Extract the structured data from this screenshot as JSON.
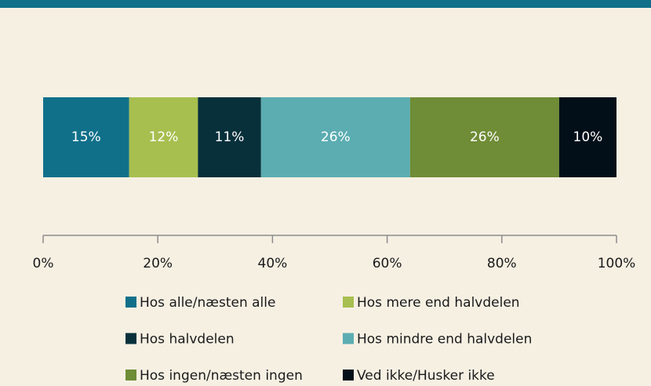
{
  "chart_data": {
    "type": "bar",
    "orientation": "horizontal",
    "stacked": true,
    "categories": [
      null
    ],
    "series": [
      {
        "name": "Hos alle/næsten alle",
        "color": "#10708a",
        "values": [
          15
        ],
        "value_labels": [
          "15%"
        ]
      },
      {
        "name": "Hos mere end halvdelen",
        "color": "#a7bf4f",
        "values": [
          12
        ],
        "value_labels": [
          "12%"
        ]
      },
      {
        "name": "Hos halvdelen",
        "color": "#07303b",
        "values": [
          11
        ],
        "value_labels": [
          "11%"
        ]
      },
      {
        "name": "Hos mindre end halvdelen",
        "color": "#5badb1",
        "values": [
          26
        ],
        "value_labels": [
          "26%"
        ]
      },
      {
        "name": "Hos ingen/næsten ingen",
        "color": "#6f8c36",
        "values": [
          26
        ],
        "value_labels": [
          "26%"
        ]
      },
      {
        "name": "Ved ikke/Husker ikke",
        "color": "#020f18",
        "values": [
          10
        ],
        "value_labels": [
          "10%"
        ]
      }
    ],
    "xlim": [
      0,
      100
    ],
    "xticks": [
      {
        "value": 0,
        "label": "0%"
      },
      {
        "value": 20,
        "label": "20%"
      },
      {
        "value": 40,
        "label": "40%"
      },
      {
        "value": 60,
        "label": "60%"
      },
      {
        "value": 80,
        "label": "80%"
      },
      {
        "value": 100,
        "label": "100%"
      }
    ],
    "legend": "bottom"
  }
}
